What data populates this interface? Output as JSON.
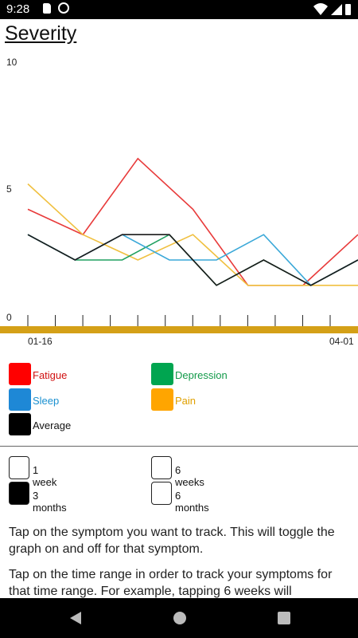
{
  "status_bar": {
    "time": "9:28"
  },
  "page_title": "Severity",
  "chart_data": {
    "type": "line",
    "title": "",
    "ylim": [
      0,
      10
    ],
    "y_ticks": [
      "0",
      "5",
      "10"
    ],
    "x_labels": [
      "01-16",
      "04-01"
    ],
    "x_tick_count": 12,
    "series": [
      {
        "name": "Fatigue",
        "color": "#e83a3a",
        "values": [
          4.2,
          3.2,
          6.2,
          4.2,
          1.2,
          1.2,
          3.2
        ]
      },
      {
        "name": "Pain",
        "color": "#f0c040",
        "values": [
          5.2,
          3.2,
          2.2,
          3.2,
          1.2,
          1.2,
          1.2
        ]
      },
      {
        "name": "Depression",
        "color": "#20a060",
        "values": [
          3.2,
          2.2,
          2.2,
          3.2,
          1.2,
          2.2,
          1.2,
          2.2
        ]
      },
      {
        "name": "Sleep",
        "color": "#3aa8d8",
        "values": [
          3.2,
          2.2,
          3.2,
          2.2,
          2.2,
          3.2,
          1.2,
          2.2
        ]
      },
      {
        "name": "Average",
        "color": "#1a1a1a",
        "values": [
          3.2,
          2.2,
          3.2,
          3.2,
          1.2,
          2.2,
          1.2,
          2.2
        ]
      }
    ]
  },
  "legend": [
    {
      "label": "Fatigue",
      "swatch": "#ff0000",
      "text_color": "#d01010"
    },
    {
      "label": "Depression",
      "swatch": "#00a550",
      "text_color": "#139a4a"
    },
    {
      "label": "Sleep",
      "swatch": "#1e88d6",
      "text_color": "#1a90d0"
    },
    {
      "label": "Pain",
      "swatch": "#ffa500",
      "text_color": "#e0a000"
    },
    {
      "label": "Average",
      "swatch": "#000000",
      "text_color": "#111111"
    }
  ],
  "time_ranges": [
    {
      "label": "1 week",
      "selected": false
    },
    {
      "label": "6 weeks",
      "selected": false
    },
    {
      "label": "3 months",
      "selected": true
    },
    {
      "label": "6 months",
      "selected": false
    }
  ],
  "instructions": [
    "Tap on the symptom you want to track. This will toggle the graph on and off for that symptom.",
    "Tap on the time range in order to track your symptoms for that time range. For example, tapping 6 weeks will"
  ]
}
